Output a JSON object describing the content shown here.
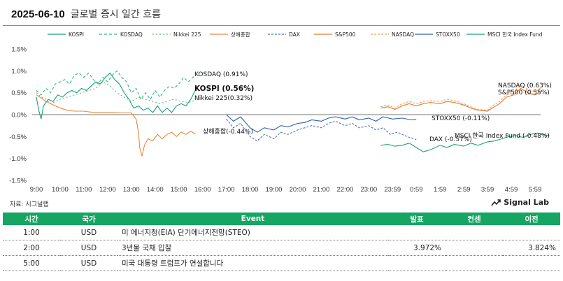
{
  "header": {
    "date": "2025-06-10",
    "title": "글로벌 증시 일간 흐름"
  },
  "source": "자료: 시그널랩",
  "brand": {
    "name": "Signal Lab",
    "icon": "trend-line-icon"
  },
  "chart_data": {
    "type": "line",
    "yticks": [
      "1.5%",
      "1.0%",
      "0.5%",
      "0.0%",
      "-0.5%",
      "-1.0%",
      "-1.5%"
    ],
    "ylim": [
      -1.5,
      1.5
    ],
    "xticks": [
      "9:00",
      "10:00",
      "11:00",
      "12:00",
      "13:00",
      "14:00",
      "15:00",
      "16:00",
      "17:00",
      "18:00",
      "19:00",
      "20:00",
      "21:00",
      "22:00",
      "23:00",
      "23:59",
      "0:59",
      "1:59",
      "2:59",
      "3:59",
      "4:59",
      "5:59"
    ],
    "series": [
      {
        "name": "KOSPI",
        "color": "#15a07a",
        "dash": "solid",
        "end_label": "KOSPI (0.56%)",
        "points": [
          [
            0,
            0.4
          ],
          [
            0.1,
            0.1
          ],
          [
            0.2,
            -0.1
          ],
          [
            0.3,
            0.2
          ],
          [
            0.5,
            0.35
          ],
          [
            0.7,
            0.3
          ],
          [
            0.9,
            0.45
          ],
          [
            1.1,
            0.4
          ],
          [
            1.3,
            0.5
          ],
          [
            1.5,
            0.55
          ],
          [
            1.7,
            0.5
          ],
          [
            1.9,
            0.6
          ],
          [
            2.1,
            0.55
          ],
          [
            2.3,
            0.65
          ],
          [
            2.5,
            0.75
          ],
          [
            2.7,
            0.7
          ],
          [
            2.9,
            0.85
          ],
          [
            3.1,
            0.95
          ],
          [
            3.3,
            0.8
          ],
          [
            3.5,
            0.7
          ],
          [
            3.7,
            0.5
          ],
          [
            3.9,
            0.35
          ],
          [
            4.1,
            0.15
          ],
          [
            4.3,
            0.2
          ],
          [
            4.5,
            0.1
          ],
          [
            4.7,
            0.15
          ],
          [
            4.9,
            0.05
          ],
          [
            5.1,
            0.2
          ],
          [
            5.3,
            0.05
          ],
          [
            5.5,
            0.15
          ],
          [
            5.7,
            0.05
          ],
          [
            5.9,
            0.2
          ],
          [
            6.1,
            0.25
          ],
          [
            6.3,
            0.2
          ],
          [
            6.5,
            0.35
          ],
          [
            6.7,
            0.56
          ]
        ]
      },
      {
        "name": "KOSDAQ",
        "color": "#2bb583",
        "dash": "4,3",
        "end_label": "KOSDAQ (0.91%)",
        "points": [
          [
            0,
            0.55
          ],
          [
            0.2,
            0.45
          ],
          [
            0.4,
            0.6
          ],
          [
            0.6,
            0.5
          ],
          [
            0.8,
            0.7
          ],
          [
            1.0,
            0.75
          ],
          [
            1.2,
            0.8
          ],
          [
            1.4,
            0.7
          ],
          [
            1.6,
            0.9
          ],
          [
            1.8,
            0.95
          ],
          [
            2.0,
            0.85
          ],
          [
            2.2,
            0.95
          ],
          [
            2.4,
            0.8
          ],
          [
            2.6,
            0.7
          ],
          [
            2.8,
            0.85
          ],
          [
            3.0,
            0.75
          ],
          [
            3.2,
            0.9
          ],
          [
            3.4,
            1.0
          ],
          [
            3.6,
            0.85
          ],
          [
            3.8,
            0.75
          ],
          [
            4.0,
            0.5
          ],
          [
            4.2,
            0.6
          ],
          [
            4.4,
            0.35
          ],
          [
            4.6,
            0.5
          ],
          [
            4.8,
            0.35
          ],
          [
            5.0,
            0.55
          ],
          [
            5.2,
            0.4
          ],
          [
            5.4,
            0.55
          ],
          [
            5.6,
            0.65
          ],
          [
            5.8,
            0.6
          ],
          [
            6.0,
            0.7
          ],
          [
            6.2,
            0.85
          ],
          [
            6.4,
            0.75
          ],
          [
            6.6,
            0.85
          ],
          [
            6.7,
            0.91
          ]
        ]
      },
      {
        "name": "Nikkei 225",
        "color": "#5cb85c",
        "dash": "2,3",
        "end_label": "Nikkei 225(0.32%)",
        "points": [
          [
            0,
            0.5
          ],
          [
            0.2,
            0.4
          ],
          [
            0.4,
            0.35
          ],
          [
            0.6,
            0.25
          ],
          [
            0.8,
            0.3
          ],
          [
            1.0,
            0.35
          ],
          [
            1.3,
            0.4
          ],
          [
            1.6,
            0.45
          ],
          [
            1.9,
            0.5
          ],
          [
            2.2,
            0.55
          ],
          [
            2.5,
            0.6
          ],
          [
            2.8,
            0.75
          ],
          [
            3.1,
            0.65
          ],
          [
            3.4,
            0.5
          ],
          [
            3.7,
            0.4
          ],
          [
            4.0,
            0.3
          ],
          [
            4.3,
            0.4
          ],
          [
            4.6,
            0.35
          ],
          [
            4.9,
            0.3
          ],
          [
            5.2,
            0.25
          ],
          [
            5.5,
            0.3
          ],
          [
            5.8,
            0.35
          ],
          [
            6.1,
            0.3
          ],
          [
            6.4,
            0.28
          ],
          [
            6.7,
            0.32
          ]
        ]
      },
      {
        "name": "상해종합",
        "color": "#e8893a",
        "dash": "solid",
        "end_label": "상해종합(-0.44%)",
        "points": [
          [
            0,
            0.45
          ],
          [
            0.2,
            0.38
          ],
          [
            0.4,
            0.3
          ],
          [
            0.6,
            0.25
          ],
          [
            0.8,
            0.2
          ],
          [
            1.0,
            0.15
          ],
          [
            1.3,
            0.1
          ],
          [
            1.6,
            0.08
          ],
          [
            2.0,
            0.08
          ],
          [
            2.4,
            0.05
          ],
          [
            2.8,
            0.05
          ],
          [
            3.2,
            0.05
          ],
          [
            3.6,
            0.04
          ],
          [
            4.0,
            0.04
          ],
          [
            4.2,
            -0.1
          ],
          [
            4.3,
            -0.4
          ],
          [
            4.35,
            -0.75
          ],
          [
            4.45,
            -0.95
          ],
          [
            4.55,
            -0.7
          ],
          [
            4.7,
            -0.55
          ],
          [
            4.9,
            -0.6
          ],
          [
            5.1,
            -0.45
          ],
          [
            5.3,
            -0.55
          ],
          [
            5.5,
            -0.45
          ],
          [
            5.7,
            -0.4
          ],
          [
            5.9,
            -0.5
          ],
          [
            6.1,
            -0.4
          ],
          [
            6.3,
            -0.45
          ],
          [
            6.5,
            -0.38
          ],
          [
            6.7,
            -0.44
          ]
        ]
      },
      {
        "name": "DAX",
        "color": "#4a72b8",
        "dash": "3,2",
        "end_label": "DAX (-0.57%)",
        "points": [
          [
            8,
            -0.1
          ],
          [
            8.3,
            -0.3
          ],
          [
            8.6,
            -0.2
          ],
          [
            9,
            -0.5
          ],
          [
            9.3,
            -0.6
          ],
          [
            9.6,
            -0.45
          ],
          [
            10,
            -0.55
          ],
          [
            10.3,
            -0.4
          ],
          [
            10.6,
            -0.45
          ],
          [
            11,
            -0.35
          ],
          [
            11.3,
            -0.3
          ],
          [
            11.6,
            -0.25
          ],
          [
            12,
            -0.3
          ],
          [
            12.3,
            -0.2
          ],
          [
            12.6,
            -0.15
          ],
          [
            13,
            -0.25
          ],
          [
            13.3,
            -0.2
          ],
          [
            13.6,
            -0.3
          ],
          [
            14,
            -0.25
          ],
          [
            14.3,
            -0.35
          ],
          [
            14.6,
            -0.3
          ],
          [
            14.9,
            -0.45
          ],
          [
            15.2,
            -0.4
          ],
          [
            15.6,
            -0.5
          ],
          [
            16,
            -0.57
          ]
        ]
      },
      {
        "name": "S&P500",
        "color": "#e07a2f",
        "dash": "solid",
        "end_label": "S&P500 (0.55%)",
        "points": [
          [
            14.5,
            0.15
          ],
          [
            14.8,
            0.18
          ],
          [
            15.1,
            0.12
          ],
          [
            15.4,
            0.2
          ],
          [
            15.7,
            0.25
          ],
          [
            16,
            0.2
          ],
          [
            16.3,
            0.25
          ],
          [
            16.6,
            0.28
          ],
          [
            17,
            0.25
          ],
          [
            17.3,
            0.3
          ],
          [
            17.6,
            0.28
          ],
          [
            18,
            0.22
          ],
          [
            18.3,
            0.15
          ],
          [
            18.6,
            0.1
          ],
          [
            19,
            0.08
          ],
          [
            19.2,
            0.15
          ],
          [
            19.5,
            0.25
          ],
          [
            19.8,
            0.4
          ],
          [
            20.1,
            0.45
          ],
          [
            20.4,
            0.6
          ],
          [
            20.7,
            0.5
          ],
          [
            21,
            0.45
          ],
          [
            21.3,
            0.55
          ]
        ]
      },
      {
        "name": "NASDAQ",
        "color": "#f0a060",
        "dash": "3,2",
        "end_label": "NASDAQ (0.63%)",
        "points": [
          [
            14.5,
            0.18
          ],
          [
            14.8,
            0.22
          ],
          [
            15.1,
            0.15
          ],
          [
            15.4,
            0.25
          ],
          [
            15.7,
            0.3
          ],
          [
            16,
            0.25
          ],
          [
            16.3,
            0.3
          ],
          [
            16.6,
            0.32
          ],
          [
            17,
            0.3
          ],
          [
            17.3,
            0.35
          ],
          [
            17.6,
            0.32
          ],
          [
            18,
            0.25
          ],
          [
            18.3,
            0.18
          ],
          [
            18.6,
            0.12
          ],
          [
            19,
            0.1
          ],
          [
            19.2,
            0.2
          ],
          [
            19.5,
            0.3
          ],
          [
            19.8,
            0.45
          ],
          [
            20.1,
            0.52
          ],
          [
            20.4,
            0.68
          ],
          [
            20.7,
            0.58
          ],
          [
            21,
            0.52
          ],
          [
            21.3,
            0.63
          ]
        ]
      },
      {
        "name": "STOXX50",
        "color": "#2f5fae",
        "dash": "solid",
        "end_label": "STOXX50 (-0.11%)",
        "points": [
          [
            8,
            0.0
          ],
          [
            8.3,
            -0.15
          ],
          [
            8.6,
            -0.05
          ],
          [
            9,
            -0.3
          ],
          [
            9.3,
            -0.4
          ],
          [
            9.6,
            -0.3
          ],
          [
            10,
            -0.35
          ],
          [
            10.3,
            -0.25
          ],
          [
            10.6,
            -0.28
          ],
          [
            11,
            -0.2
          ],
          [
            11.3,
            -0.18
          ],
          [
            11.6,
            -0.12
          ],
          [
            12,
            -0.15
          ],
          [
            12.3,
            -0.08
          ],
          [
            12.6,
            -0.05
          ],
          [
            13,
            -0.1
          ],
          [
            13.3,
            -0.05
          ],
          [
            13.6,
            -0.12
          ],
          [
            14,
            -0.08
          ],
          [
            14.3,
            -0.15
          ],
          [
            14.6,
            -0.05
          ],
          [
            15,
            -0.1
          ],
          [
            15.4,
            -0.08
          ],
          [
            15.8,
            -0.12
          ],
          [
            16,
            -0.11
          ]
        ]
      },
      {
        "name": "MSCI 한국 Index Fund",
        "color": "#1aa07a",
        "dash": "solid",
        "end_label": "MSCI 한국 Index Fund (-0.48%)",
        "points": [
          [
            14.5,
            -0.7
          ],
          [
            14.8,
            -0.68
          ],
          [
            15.1,
            -0.72
          ],
          [
            15.4,
            -0.7
          ],
          [
            15.7,
            -0.65
          ],
          [
            16,
            -0.75
          ],
          [
            16.3,
            -0.85
          ],
          [
            16.6,
            -0.8
          ],
          [
            17,
            -0.7
          ],
          [
            17.3,
            -0.75
          ],
          [
            17.6,
            -0.68
          ],
          [
            18,
            -0.72
          ],
          [
            18.3,
            -0.65
          ],
          [
            18.6,
            -0.7
          ],
          [
            19,
            -0.62
          ],
          [
            19.3,
            -0.6
          ],
          [
            19.6,
            -0.55
          ],
          [
            19.9,
            -0.5
          ],
          [
            20.2,
            -0.48
          ],
          [
            20.5,
            -0.52
          ],
          [
            20.8,
            -0.45
          ],
          [
            21.1,
            -0.42
          ],
          [
            21.4,
            -0.46
          ],
          [
            21.6,
            -0.48
          ]
        ]
      }
    ]
  },
  "table": {
    "headers": {
      "time": "시간",
      "country": "국가",
      "event": "Event",
      "actual": "발표",
      "consensus": "컨센",
      "previous": "이전"
    },
    "rows": [
      {
        "time": "1:00",
        "country": "USD",
        "event": "미 에너지청(EIA) 단기에너지전망(STEO)",
        "actual": "",
        "consensus": "",
        "previous": ""
      },
      {
        "time": "2:00",
        "country": "USD",
        "event": "3년물 국채 입찰",
        "actual": "3.972%",
        "consensus": "",
        "previous": "3.824%"
      },
      {
        "time": "5:00",
        "country": "USD",
        "event": "미국 대통령 트럼프가 연설합니다",
        "actual": "",
        "consensus": "",
        "previous": ""
      }
    ]
  }
}
